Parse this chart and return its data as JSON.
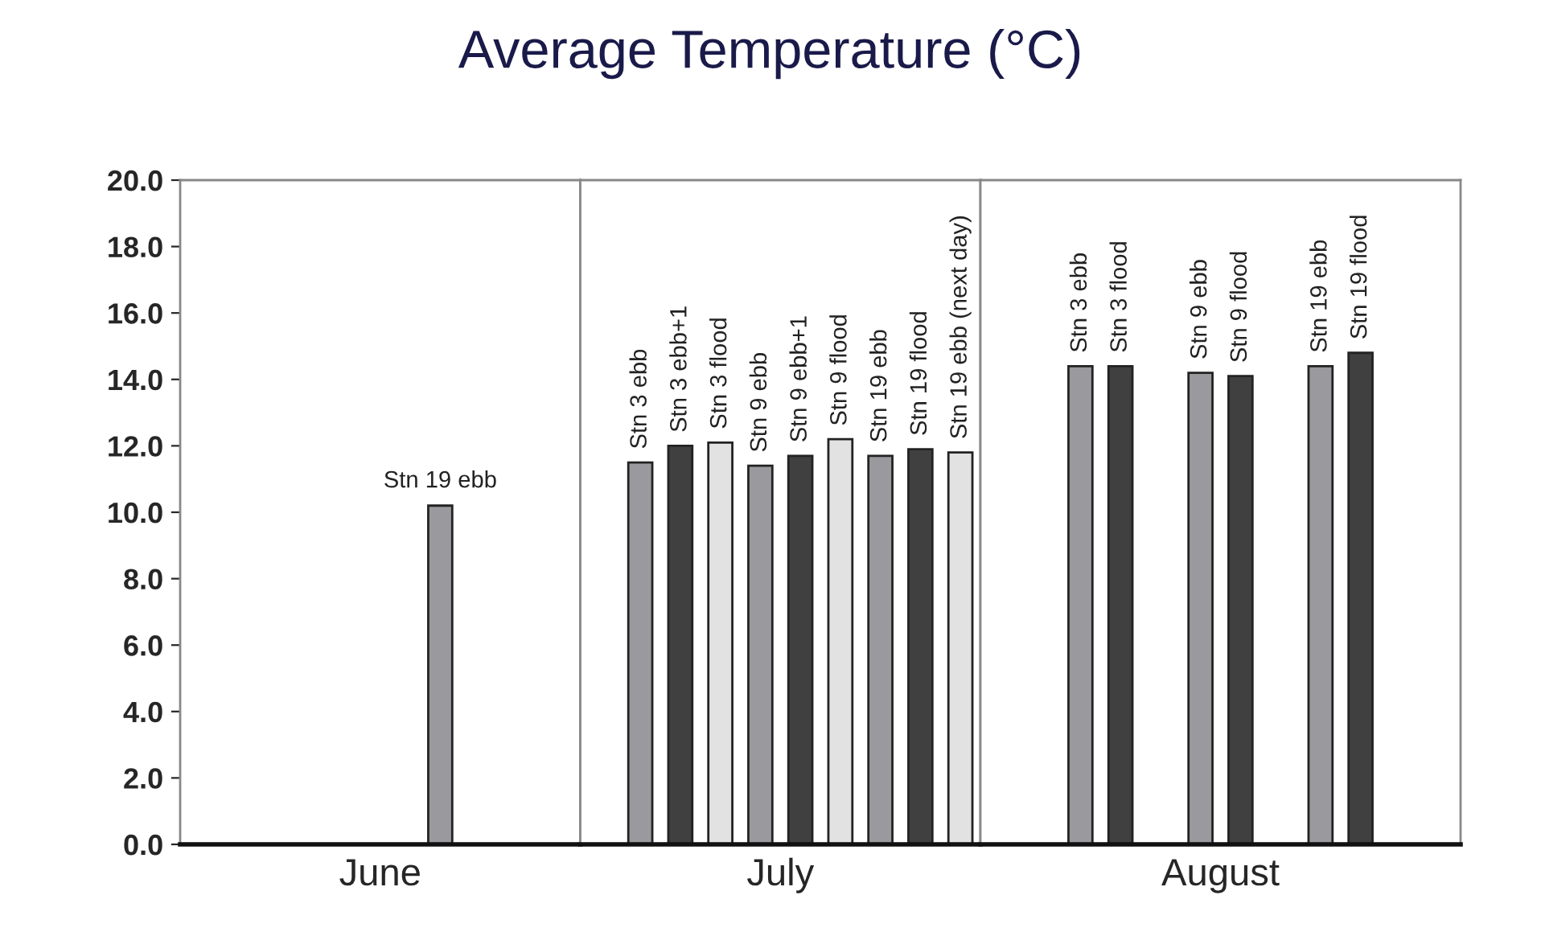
{
  "chart_data": [
    {
      "type": "bar",
      "title": "Average Temperature (°C)",
      "xlabel": "June",
      "tick_labels": "y",
      "categories": [
        null,
        null,
        null,
        null,
        null,
        null,
        "Stn 19 ebb",
        null,
        null,
        null
      ],
      "values": [
        null,
        null,
        null,
        null,
        null,
        null,
        10.2,
        null,
        null,
        null
      ],
      "colors": [
        "#9a9a9e",
        "#9a9a9e",
        "#9a9a9e",
        "#9a9a9e",
        "#9a9a9e",
        "#9a9a9e",
        "#9a9a9e",
        "#9a9a9e",
        "#9a9a9e",
        "#9a9a9e"
      ],
      "ylim": [
        0,
        20
      ],
      "yticks": [
        {
          "value": 0,
          "label": "0.0"
        },
        {
          "value": 2,
          "label": "2.0"
        },
        {
          "value": 4,
          "label": "4.0"
        },
        {
          "value": 6,
          "label": "6.0"
        },
        {
          "value": 8,
          "label": "8.0"
        },
        {
          "value": 10,
          "label": "10.0"
        },
        {
          "value": 12,
          "label": "12.0"
        },
        {
          "value": 14,
          "label": "14.0"
        },
        {
          "value": 16,
          "label": "16.0"
        },
        {
          "value": 18,
          "label": "18.0"
        },
        {
          "value": 20,
          "label": "20.0"
        }
      ]
    },
    {
      "type": "bar",
      "xlabel": "July",
      "tick_labels": false,
      "categories": [
        null,
        "Stn 3 ebb",
        "Stn 3 ebb+1",
        "Stn 3 flood",
        "Stn 9 ebb",
        "Stn 9 ebb+1",
        "Stn 9 flood",
        "Stn 19 ebb",
        "Stn 19 flood",
        "Stn 19 ebb (next day)"
      ],
      "values": [
        null,
        11.5,
        12.0,
        12.1,
        11.4,
        11.7,
        12.2,
        11.7,
        11.9,
        11.8
      ],
      "colors": [
        "#9a9a9e",
        "#9a9a9e",
        "#404040",
        "#e2e2e2",
        "#9a9a9e",
        "#404040",
        "#e2e2e2",
        "#9a9a9e",
        "#404040",
        "#e2e2e2"
      ],
      "ylim": [
        0,
        20
      ]
    },
    {
      "type": "bar",
      "xlabel": "August",
      "tick_labels": false,
      "categories": [
        null,
        null,
        "Stn 3 ebb",
        "Stn 3 flood",
        null,
        "Stn 9 ebb",
        "Stn 9 flood",
        null,
        "Stn 19 ebb",
        "Stn 19 flood",
        null,
        null
      ],
      "values": [
        null,
        null,
        14.4,
        14.4,
        null,
        14.2,
        14.1,
        null,
        14.4,
        14.8,
        null,
        null
      ],
      "colors": [
        "#9a9a9e",
        "#9a9a9e",
        "#9a9a9e",
        "#404040",
        "#9a9a9e",
        "#9a9a9e",
        "#404040",
        "#9a9a9e",
        "#9a9a9e",
        "#404040",
        "#9a9a9e",
        "#9a9a9e"
      ],
      "ylim": [
        0,
        20
      ]
    }
  ]
}
